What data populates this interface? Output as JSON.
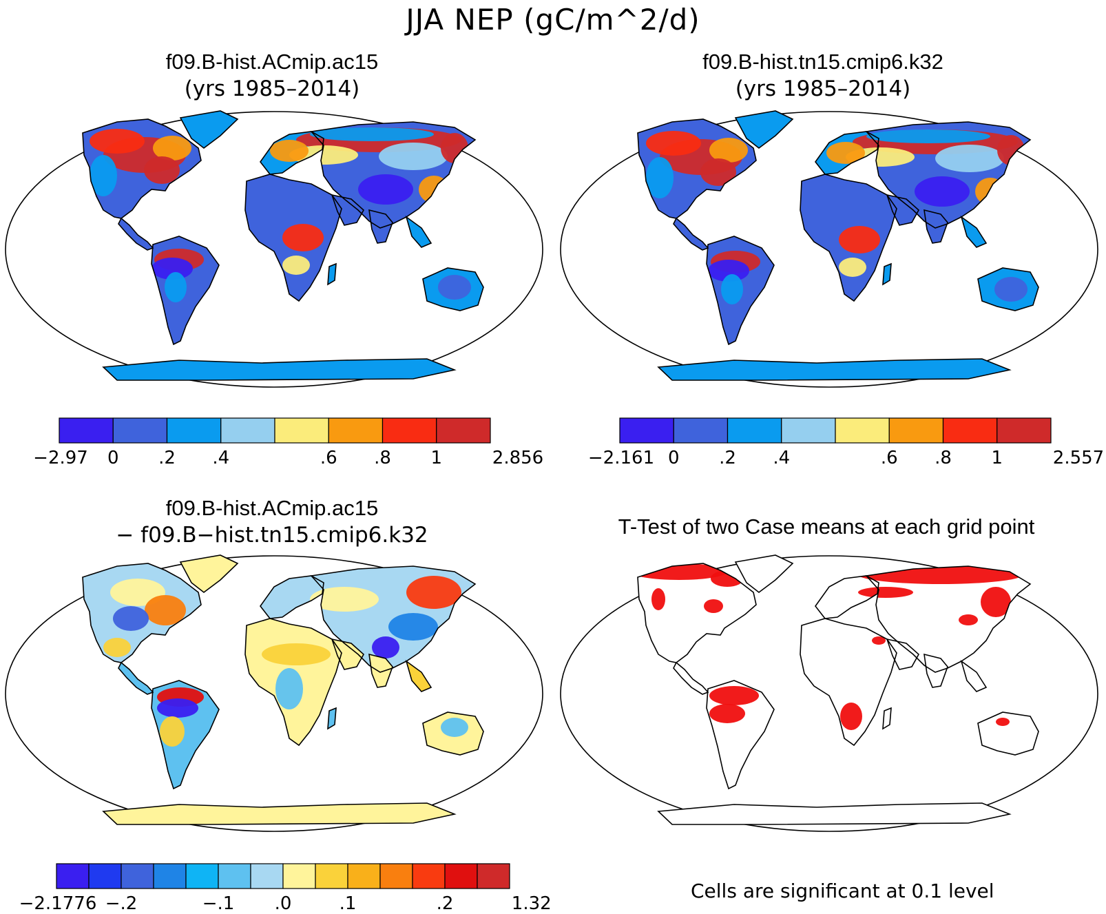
{
  "figure": {
    "main_title": "JJA NEP (gC/m^2/d)"
  },
  "panels": [
    {
      "title": "f09.B-hist.ACmip.ac15",
      "subtitle": "(yrs 1985–2014)",
      "colorbar": {
        "colors": [
          "#3a1ff0",
          "#3f63dc",
          "#0a9bef",
          "#95cfef",
          "#fbec7b",
          "#f99a10",
          "#f92c12",
          "#cf2a2a"
        ],
        "tick_labels": [
          "−2.97",
          "0",
          ".2",
          ".4",
          ".6",
          ".8",
          "1",
          "2.856"
        ]
      }
    },
    {
      "title": "f09.B-hist.tn15.cmip6.k32",
      "subtitle": "(yrs 1985–2014)",
      "colorbar": {
        "colors": [
          "#3a1ff0",
          "#3f63dc",
          "#0a9bef",
          "#95cfef",
          "#fbec7b",
          "#f99a10",
          "#f92c12",
          "#cf2a2a"
        ],
        "tick_labels": [
          "−2.161",
          "0",
          ".2",
          ".4",
          ".6",
          ".8",
          "1",
          "2.557"
        ]
      }
    },
    {
      "title": "f09.B-hist.ACmip.ac15",
      "subtitle": "− f09.B−hist.tn15.cmip6.k32",
      "colorbar": {
        "colors": [
          "#3a1ff0",
          "#1f3af0",
          "#3f63dc",
          "#1f84e6",
          "#0fb4f5",
          "#5ec1f0",
          "#a8d8f2",
          "#fff49b",
          "#fad23a",
          "#f9b01a",
          "#f97f0f",
          "#f93b10",
          "#e0100f",
          "#cf2a2a"
        ],
        "tick_labels": [
          "−2.1776",
          "−.2",
          "−.1",
          ".0",
          ".1",
          ".2",
          "1.321"
        ]
      }
    },
    {
      "title": "T-Test of two Case means at each grid point",
      "note": "Cells are significant at 0.1 level",
      "significant_color": "#f00f0f"
    }
  ]
}
